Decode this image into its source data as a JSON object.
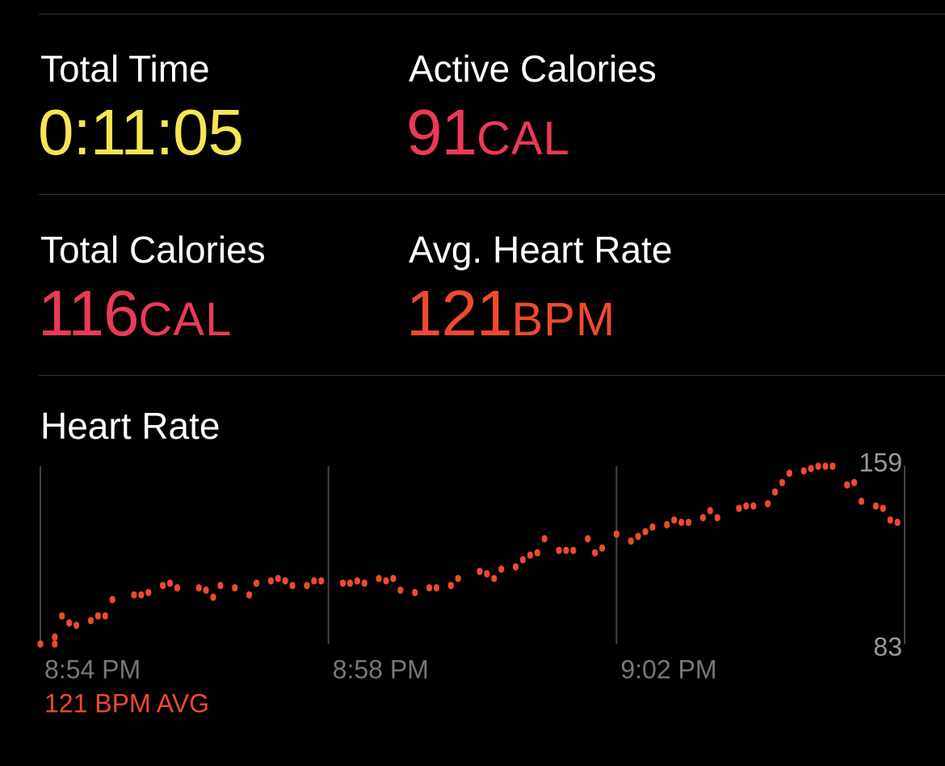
{
  "metrics": [
    {
      "label": "Total Time",
      "value": "0:11:05",
      "color": "#f5e653"
    },
    {
      "label": "Active Calories",
      "value": "91",
      "unit": "CAL",
      "color": "#ea3a57"
    },
    {
      "label": "Total Calories",
      "value": "116",
      "unit": "CAL",
      "color": "#ea3a57"
    },
    {
      "label": "Avg. Heart Rate",
      "value": "121",
      "unit": "BPM",
      "color": "#ee4a2e"
    }
  ],
  "chart_data": {
    "type": "scatter",
    "title": "Heart Rate",
    "avg_label": "121 BPM AVG",
    "color": "#ee4a2e",
    "x": [
      0.0,
      0.2,
      0.2,
      0.3,
      0.4,
      0.5,
      0.7,
      0.8,
      0.9,
      1.0,
      1.3,
      1.4,
      1.5,
      1.7,
      1.8,
      1.9,
      2.2,
      2.3,
      2.4,
      2.5,
      2.7,
      2.9,
      3.0,
      3.2,
      3.3,
      3.4,
      3.5,
      3.7,
      3.8,
      3.9,
      4.2,
      4.3,
      4.4,
      4.5,
      4.7,
      4.8,
      4.9,
      5.0,
      5.2,
      5.4,
      5.5,
      5.7,
      5.8,
      6.1,
      6.2,
      6.3,
      6.4,
      6.6,
      6.7,
      6.8,
      6.9,
      7.0,
      7.2,
      7.3,
      7.4,
      7.6,
      7.7,
      7.8,
      8.0,
      8.2,
      8.3,
      8.4,
      8.5,
      8.7,
      8.8,
      8.9,
      9.0,
      9.2,
      9.3,
      9.4,
      9.7,
      9.8,
      9.9,
      10.1,
      10.2,
      10.3,
      10.4,
      10.6,
      10.7,
      10.8,
      10.9,
      11.0,
      11.2,
      11.3,
      11.4,
      11.6,
      11.7,
      11.8,
      11.9
    ],
    "values": [
      83,
      83,
      86,
      95,
      92,
      91,
      93,
      95,
      95,
      102,
      104,
      104,
      105,
      108,
      109,
      107,
      107,
      106,
      103,
      108,
      107,
      104,
      109,
      110,
      111,
      110,
      108,
      108,
      110,
      110,
      109,
      109,
      110,
      109,
      111,
      110,
      111,
      106,
      105,
      107,
      107,
      108,
      111,
      114,
      113,
      111,
      115,
      116,
      119,
      121,
      122,
      128,
      123,
      123,
      123,
      128,
      122,
      124,
      130,
      127,
      129,
      131,
      133,
      134,
      136,
      135,
      135,
      137,
      140,
      137,
      141,
      142,
      142,
      143,
      148,
      152,
      156,
      157,
      158,
      159,
      159,
      159,
      151,
      152,
      144,
      142,
      141,
      136,
      135
    ],
    "xlim": [
      0,
      12
    ],
    "xticks": [
      {
        "value": 0,
        "label": "8:54 PM"
      },
      {
        "value": 4,
        "label": "8:58 PM"
      },
      {
        "value": 8,
        "label": "9:02 PM"
      }
    ],
    "ylim": [
      83,
      159
    ],
    "yticks": [
      83,
      159
    ],
    "grid": true
  }
}
